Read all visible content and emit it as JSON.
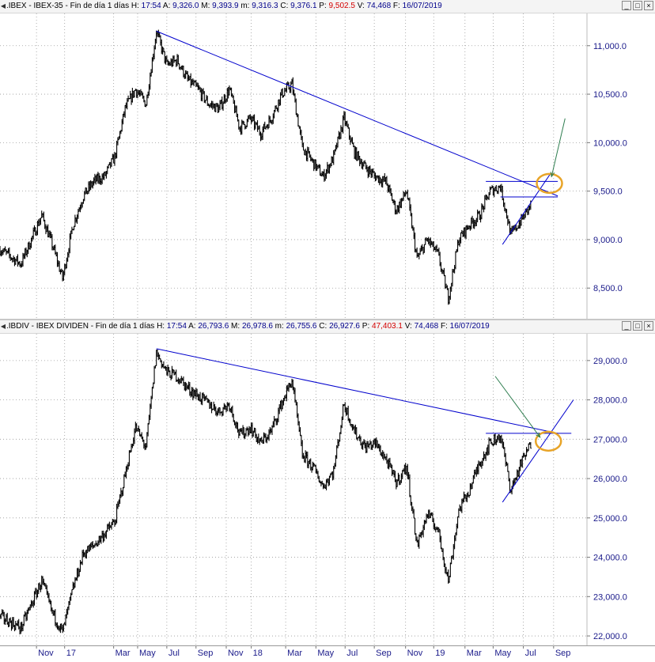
{
  "panes": [
    {
      "header": {
        "symbol": ".IBEX - IBEX-35 - Fin de día 1 días",
        "fields": [
          {
            "label": "H:",
            "value": "17:54",
            "color": "#00008b"
          },
          {
            "label": "A:",
            "value": "9,326.0",
            "color": "#00008b"
          },
          {
            "label": "M:",
            "value": "9,393.9",
            "color": "#00008b"
          },
          {
            "label": "m:",
            "value": "9,316.3",
            "color": "#00008b"
          },
          {
            "label": "C:",
            "value": "9,376.1",
            "color": "#00008b"
          },
          {
            "label": "P:",
            "value": "9,502.5",
            "color": "#d40000"
          },
          {
            "label": "V:",
            "value": "74,468",
            "color": "#00008b"
          },
          {
            "label": "F:",
            "value": "16/07/2019",
            "color": "#00008b"
          }
        ]
      }
    },
    {
      "header": {
        "symbol": ".IBDIV - IBEX DIVIDEN - Fin de día 1 días",
        "fields": [
          {
            "label": "H:",
            "value": "17:54",
            "color": "#00008b"
          },
          {
            "label": "A:",
            "value": "26,793.6",
            "color": "#00008b"
          },
          {
            "label": "M:",
            "value": "26,978.6",
            "color": "#00008b"
          },
          {
            "label": "m:",
            "value": "26,755.6",
            "color": "#00008b"
          },
          {
            "label": "C:",
            "value": "26,927.6",
            "color": "#00008b"
          },
          {
            "label": "P:",
            "value": "47,403.1",
            "color": "#d40000"
          },
          {
            "label": "V:",
            "value": "74,468",
            "color": "#00008b"
          },
          {
            "label": "F:",
            "value": "16/07/2019",
            "color": "#00008b"
          }
        ]
      }
    }
  ],
  "window_buttons": [
    "_",
    "□",
    "×"
  ],
  "x_axis_labels": [
    "Nov",
    "17",
    "Mar",
    "May",
    "Jul",
    "Sep",
    "Nov",
    "18",
    "Mar",
    "May",
    "Jul",
    "Sep",
    "Nov",
    "19",
    "Mar",
    "May",
    "Jul",
    "Sep"
  ],
  "chart_data": [
    {
      "type": "line",
      "style": "ohlc-bars",
      "ylim": [
        8200,
        11300
      ],
      "yticks": [
        {
          "v": 8500,
          "label": "8,500.0"
        },
        {
          "v": 9000,
          "label": "9,000.0"
        },
        {
          "v": 9500,
          "label": "9,500.0"
        },
        {
          "v": 10000,
          "label": "10,000.0"
        },
        {
          "v": 10500,
          "label": "10,500.0"
        },
        {
          "v": 11000,
          "label": "11,000.0"
        }
      ],
      "x": [
        0,
        2,
        4,
        5,
        6,
        7,
        8,
        9,
        10,
        11,
        12,
        13,
        14,
        15,
        16,
        17,
        18,
        19,
        20,
        21,
        22,
        23,
        24,
        25,
        26,
        27,
        28,
        29,
        30,
        31,
        32,
        33,
        34,
        35,
        36,
        37,
        38,
        39,
        40,
        41,
        42,
        43,
        44,
        45,
        46,
        47,
        48,
        49,
        50,
        51
      ],
      "close": [
        8900,
        8750,
        9250,
        8950,
        8600,
        9150,
        9450,
        9600,
        9650,
        9850,
        10350,
        10550,
        10400,
        11150,
        10800,
        10850,
        10650,
        10550,
        10400,
        10350,
        10550,
        10150,
        10250,
        10100,
        10250,
        10500,
        10600,
        9950,
        9800,
        9650,
        9850,
        10250,
        9900,
        9750,
        9650,
        9600,
        9300,
        9500,
        8800,
        9000,
        8850,
        8400,
        9000,
        9150,
        9250,
        9500,
        9550,
        9050,
        9200,
        9376
      ],
      "trendlines": [
        {
          "x1": 15,
          "y1": 11150,
          "x2": 53.5,
          "y2": 9450,
          "color": "#0000cd"
        },
        {
          "x1": 46.6,
          "y1": 9600,
          "x2": 53.5,
          "y2": 9600,
          "color": "#0000cd"
        },
        {
          "x1": 48,
          "y1": 9440,
          "x2": 53.5,
          "y2": 9440,
          "color": "#0000cd"
        },
        {
          "x1": 48.2,
          "y1": 8950,
          "x2": 52.8,
          "y2": 9680,
          "color": "#0000cd"
        }
      ],
      "highlight": {
        "x": 52.7,
        "y": 9580,
        "color": "#e8a428"
      },
      "arrow": {
        "x1": 54.2,
        "y1": 10250,
        "x2": 52.9,
        "y2": 9650,
        "color": "#2e7d4f"
      }
    },
    {
      "type": "line",
      "style": "ohlc-bars",
      "ylim": [
        21800,
        29600
      ],
      "yticks": [
        {
          "v": 22000,
          "label": "22,000.0"
        },
        {
          "v": 23000,
          "label": "23,000.0"
        },
        {
          "v": 24000,
          "label": "24,000.0"
        },
        {
          "v": 25000,
          "label": "25,000.0"
        },
        {
          "v": 26000,
          "label": "26,000.0"
        },
        {
          "v": 27000,
          "label": "27,000.0"
        },
        {
          "v": 28000,
          "label": "28,000.0"
        },
        {
          "v": 29000,
          "label": "29,000.0"
        }
      ],
      "x": [
        0,
        2,
        4,
        5,
        6,
        7,
        8,
        9,
        10,
        11,
        12,
        13,
        14,
        15,
        16,
        17,
        18,
        19,
        20,
        21,
        22,
        23,
        24,
        25,
        26,
        27,
        28,
        29,
        30,
        31,
        32,
        33,
        34,
        35,
        36,
        37,
        38,
        39,
        40,
        41,
        42,
        43,
        44,
        45,
        46,
        47,
        48,
        49,
        50,
        51
      ],
      "close": [
        22500,
        22200,
        23400,
        22600,
        22100,
        23200,
        24100,
        24300,
        24600,
        24900,
        26100,
        27300,
        26800,
        29200,
        28700,
        28600,
        28300,
        28100,
        27900,
        27700,
        27900,
        27100,
        27300,
        26900,
        27200,
        27900,
        28500,
        26600,
        26300,
        25800,
        26200,
        27900,
        27200,
        26800,
        26900,
        26500,
        25900,
        26300,
        24300,
        25100,
        24700,
        23400,
        25200,
        25700,
        26400,
        26900,
        27100,
        25700,
        26400,
        26928
      ],
      "trendlines": [
        {
          "x1": 15,
          "y1": 29300,
          "x2": 53.5,
          "y2": 27150,
          "color": "#0000cd"
        },
        {
          "x1": 46.6,
          "y1": 27150,
          "x2": 54.8,
          "y2": 27150,
          "color": "#0000cd"
        },
        {
          "x1": 48.2,
          "y1": 25400,
          "x2": 55,
          "y2": 28000,
          "color": "#0000cd"
        }
      ],
      "highlight": {
        "x": 52.6,
        "y": 26950,
        "color": "#e8a428"
      },
      "arrow": {
        "x1": 47.5,
        "y1": 28600,
        "x2": 51.8,
        "y2": 27050,
        "color": "#2e7d4f"
      }
    }
  ],
  "x_label_positions": [
    3.5,
    6.2,
    10.9,
    13.2,
    16.0,
    18.8,
    21.7,
    24.1,
    27.4,
    30.3,
    33.1,
    35.9,
    38.9,
    41.6,
    44.6,
    47.3,
    50.2,
    53.1
  ]
}
